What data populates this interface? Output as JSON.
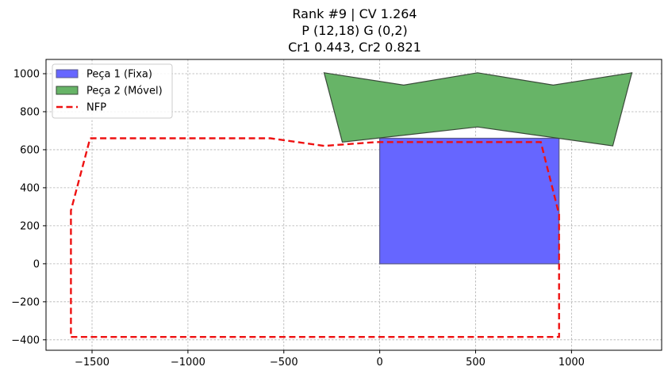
{
  "chart_data": {
    "type": "area",
    "title_lines": [
      "Rank #9 | CV 1.264",
      "P (12,18) G (0,2)",
      "Cr1 0.443, Cr2 0.821"
    ],
    "xlim": [
      -1740,
      1470
    ],
    "ylim": [
      -455,
      1075
    ],
    "xticks": [
      -1500,
      -1000,
      -500,
      0,
      500,
      1000
    ],
    "yticks": [
      -400,
      -200,
      0,
      200,
      400,
      600,
      800,
      1000
    ],
    "grid": true,
    "legend_position": "top-left",
    "series": [
      {
        "name": "Peça 1 (Fixa)",
        "kind": "polygon",
        "fill": "#6666ff",
        "stroke": "#5a5a8c",
        "points": [
          [
            0,
            0
          ],
          [
            935,
            0
          ],
          [
            935,
            660
          ],
          [
            0,
            660
          ]
        ]
      },
      {
        "name": "Peça 2 (Móvel)",
        "kind": "polygon",
        "fill": "#67b467",
        "stroke": "#3a4a3a",
        "points": [
          [
            -290,
            1005
          ],
          [
            125,
            940
          ],
          [
            510,
            1005
          ],
          [
            905,
            940
          ],
          [
            1315,
            1005
          ],
          [
            1215,
            620
          ],
          [
            510,
            720
          ],
          [
            -195,
            640
          ]
        ]
      },
      {
        "name": "NFP",
        "kind": "dashed-line",
        "stroke": "#ee1111",
        "points": [
          [
            -1610,
            -385
          ],
          [
            935,
            -385
          ],
          [
            935,
            260
          ],
          [
            840,
            640
          ],
          [
            -20,
            640
          ],
          [
            -290,
            620
          ],
          [
            -570,
            660
          ],
          [
            -1510,
            660
          ],
          [
            -1610,
            280
          ],
          [
            -1610,
            -385
          ]
        ]
      }
    ]
  }
}
